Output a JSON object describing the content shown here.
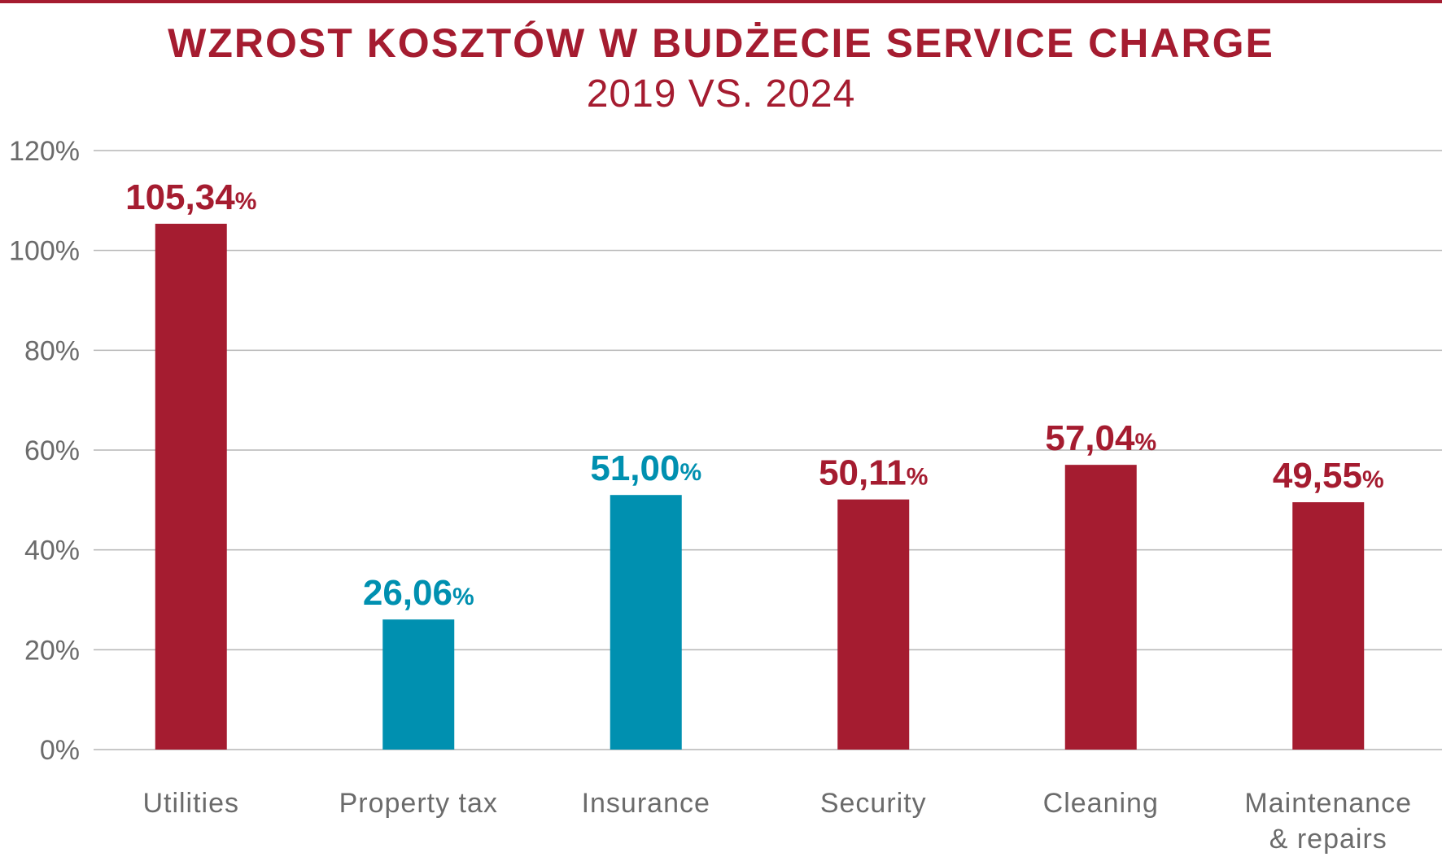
{
  "title": "WZROST KOSZTÓW W BUDŻECIE SERVICE CHARGE",
  "subtitle": "2019 VS. 2024",
  "colors": {
    "primary": "#a51c30",
    "secondary": "#0090b0",
    "grid": "#b5b5b5",
    "text": "#6b6b6b"
  },
  "chart_data": {
    "type": "bar",
    "title": "WZROST KOSZTÓW W BUDŻECIE SERVICE CHARGE",
    "subtitle": "2019 VS. 2024",
    "categories": [
      "Utilities",
      "Property tax",
      "Insurance",
      "Security",
      "Cleaning",
      "Maintenance & repairs"
    ],
    "category_lines": [
      [
        "Utilities"
      ],
      [
        "Property tax"
      ],
      [
        "Insurance"
      ],
      [
        "Security"
      ],
      [
        "Cleaning"
      ],
      [
        "Maintenance",
        "& repairs"
      ]
    ],
    "values": [
      105.34,
      26.06,
      51.0,
      50.11,
      57.04,
      49.55
    ],
    "value_labels": [
      {
        "number": "105,34",
        "unit": "%"
      },
      {
        "number": "26,06",
        "unit": "%"
      },
      {
        "number": "51,00",
        "unit": "%"
      },
      {
        "number": "50,11",
        "unit": "%"
      },
      {
        "number": "57,04",
        "unit": "%"
      },
      {
        "number": "49,55",
        "unit": "%"
      }
    ],
    "bar_colors": [
      "#a51c30",
      "#0090b0",
      "#0090b0",
      "#a51c30",
      "#a51c30",
      "#a51c30"
    ],
    "yticks": [
      "0%",
      "20%",
      "40%",
      "60%",
      "80%",
      "100%",
      "120%"
    ],
    "ylim": [
      0,
      120
    ],
    "grid": true,
    "legend": "none"
  }
}
